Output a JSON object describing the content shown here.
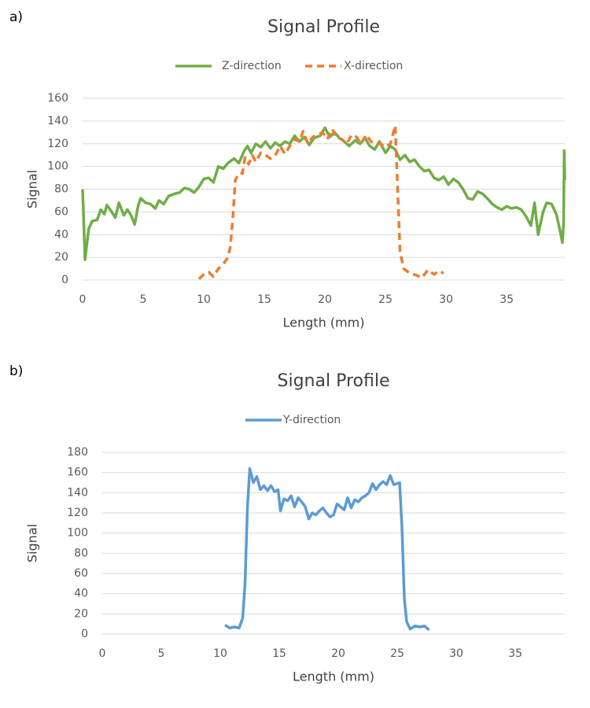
{
  "chart_data": [
    {
      "type": "line",
      "label": "a)",
      "title": "Signal Profile",
      "xlabel": "Length (mm)",
      "ylabel": "Signal",
      "xlim": [
        0,
        39.8
      ],
      "xticks": [
        0,
        5,
        10,
        15,
        20,
        25,
        30,
        35
      ],
      "ylim": [
        0,
        160
      ],
      "yticks": [
        0,
        20,
        40,
        60,
        80,
        100,
        120,
        140,
        160
      ],
      "grid": true,
      "legend": "top",
      "series": [
        {
          "name": "Z-direction",
          "color": "#70ad47",
          "style": "solid",
          "x": [
            0,
            0.2,
            0.5,
            0.8,
            1.2,
            1.5,
            1.8,
            2,
            2.4,
            2.7,
            3,
            3.4,
            3.7,
            4,
            4.3,
            4.6,
            4.8,
            5.2,
            5.6,
            6,
            6.3,
            6.7,
            7.1,
            7.6,
            8,
            8.4,
            8.8,
            9.2,
            9.6,
            10,
            10.4,
            10.8,
            11.2,
            11.6,
            12,
            12.5,
            12.9,
            13.3,
            13.6,
            13.9,
            14.3,
            14.7,
            15.1,
            15.5,
            15.9,
            16.3,
            16.7,
            17.1,
            17.5,
            17.9,
            18.3,
            18.7,
            19.1,
            19.6,
            20,
            20.4,
            20.8,
            21.2,
            21.6,
            22,
            22.5,
            22.9,
            23.3,
            23.7,
            24.1,
            24.5,
            25,
            25.4,
            25.8,
            26.2,
            26.6,
            27,
            27.4,
            27.8,
            28.2,
            28.6,
            29,
            29.4,
            29.8,
            30.2,
            30.6,
            31,
            31.4,
            31.8,
            32.2,
            32.6,
            33,
            33.4,
            33.8,
            34.2,
            34.6,
            35,
            35.4,
            35.8,
            36.2,
            36.6,
            37,
            37.3,
            37.6,
            38,
            38.3,
            38.7,
            39.1,
            39.4,
            39.6,
            39.7,
            39.75,
            39.8
          ],
          "values": [
            80,
            18,
            45,
            52,
            53,
            62,
            58,
            66,
            60,
            55,
            68,
            57,
            62,
            57,
            49,
            66,
            72,
            68,
            67,
            63,
            70,
            67,
            74,
            76,
            77,
            81,
            80,
            77,
            82,
            89,
            90,
            86,
            100,
            98,
            103,
            107,
            103,
            113,
            118,
            112,
            120,
            117,
            122,
            116,
            121,
            118,
            122,
            120,
            127,
            122,
            126,
            119,
            125,
            127,
            134,
            126,
            130,
            125,
            122,
            118,
            123,
            120,
            125,
            118,
            115,
            122,
            112,
            118,
            115,
            106,
            110,
            104,
            106,
            100,
            96,
            97,
            90,
            88,
            91,
            84,
            89,
            86,
            80,
            72,
            71,
            78,
            76,
            72,
            67,
            64,
            62,
            65,
            63,
            64,
            62,
            56,
            48,
            68,
            40,
            60,
            68,
            67,
            58,
            44,
            33,
            51,
            114,
            88
          ]
        },
        {
          "name": "X-direction",
          "color": "#ed7d31",
          "style": "dashed",
          "x": [
            9.6,
            10,
            10.4,
            10.8,
            11.2,
            11.6,
            12,
            12.2,
            12.4,
            12.6,
            12.9,
            13.2,
            13.4,
            13.7,
            14,
            14.3,
            14.7,
            15.1,
            15.5,
            15.9,
            16.3,
            16.7,
            17.1,
            17.5,
            17.9,
            18.2,
            18.6,
            19,
            19.4,
            19.8,
            20.2,
            20.6,
            21,
            21.4,
            21.8,
            22.2,
            22.6,
            23,
            23.4,
            23.8,
            24.2,
            24.6,
            25,
            25.4,
            25.8,
            26,
            26.2,
            26.5,
            27,
            27.6,
            28,
            28.5,
            29,
            29.4,
            29.8
          ],
          "values": [
            1,
            5,
            7,
            3,
            10,
            14,
            20,
            30,
            55,
            88,
            94,
            94,
            108,
            102,
            110,
            104,
            112,
            110,
            107,
            110,
            118,
            111,
            118,
            124,
            122,
            131,
            120,
            126,
            128,
            130,
            124,
            133,
            125,
            124,
            120,
            128,
            126,
            120,
            128,
            122,
            120,
            120,
            117,
            120,
            136,
            80,
            25,
            10,
            6,
            4,
            2,
            9,
            5,
            8,
            6
          ]
        }
      ]
    },
    {
      "type": "line",
      "label": "b)",
      "title": "Signal Profile",
      "xlabel": "Length (mm)",
      "ylabel": "Signal",
      "xlim": [
        0,
        39.2
      ],
      "xticks": [
        0,
        5,
        10,
        15,
        20,
        25,
        30,
        35
      ],
      "ylim": [
        0,
        180
      ],
      "yticks": [
        0,
        20,
        40,
        60,
        80,
        100,
        120,
        140,
        160,
        180
      ],
      "grid": true,
      "legend": "top",
      "series": [
        {
          "name": "Y-direction",
          "color": "#5b9bd5",
          "style": "solid",
          "x": [
            10.4,
            10.8,
            11.2,
            11.6,
            11.9,
            12.1,
            12.3,
            12.5,
            12.8,
            13.1,
            13.4,
            13.7,
            14,
            14.3,
            14.6,
            14.9,
            15.1,
            15.4,
            15.7,
            16,
            16.3,
            16.6,
            16.9,
            17.2,
            17.5,
            17.8,
            18.1,
            18.4,
            18.7,
            19,
            19.3,
            19.6,
            19.9,
            20.2,
            20.5,
            20.8,
            21.1,
            21.4,
            21.7,
            22,
            22.3,
            22.6,
            22.9,
            23.2,
            23.5,
            23.8,
            24.1,
            24.4,
            24.7,
            25.2,
            25.4,
            25.6,
            25.8,
            26.1,
            26.5,
            26.9,
            27.3,
            27.7
          ],
          "values": [
            9,
            6,
            7,
            6,
            16,
            50,
            125,
            164,
            150,
            156,
            143,
            147,
            142,
            147,
            141,
            143,
            122,
            134,
            132,
            137,
            126,
            135,
            131,
            126,
            114,
            120,
            118,
            122,
            125,
            120,
            116,
            118,
            129,
            126,
            123,
            135,
            125,
            133,
            131,
            135,
            137,
            140,
            149,
            143,
            148,
            151,
            148,
            157,
            148,
            150,
            105,
            35,
            12,
            5,
            8,
            7,
            8,
            4
          ]
        }
      ]
    }
  ]
}
